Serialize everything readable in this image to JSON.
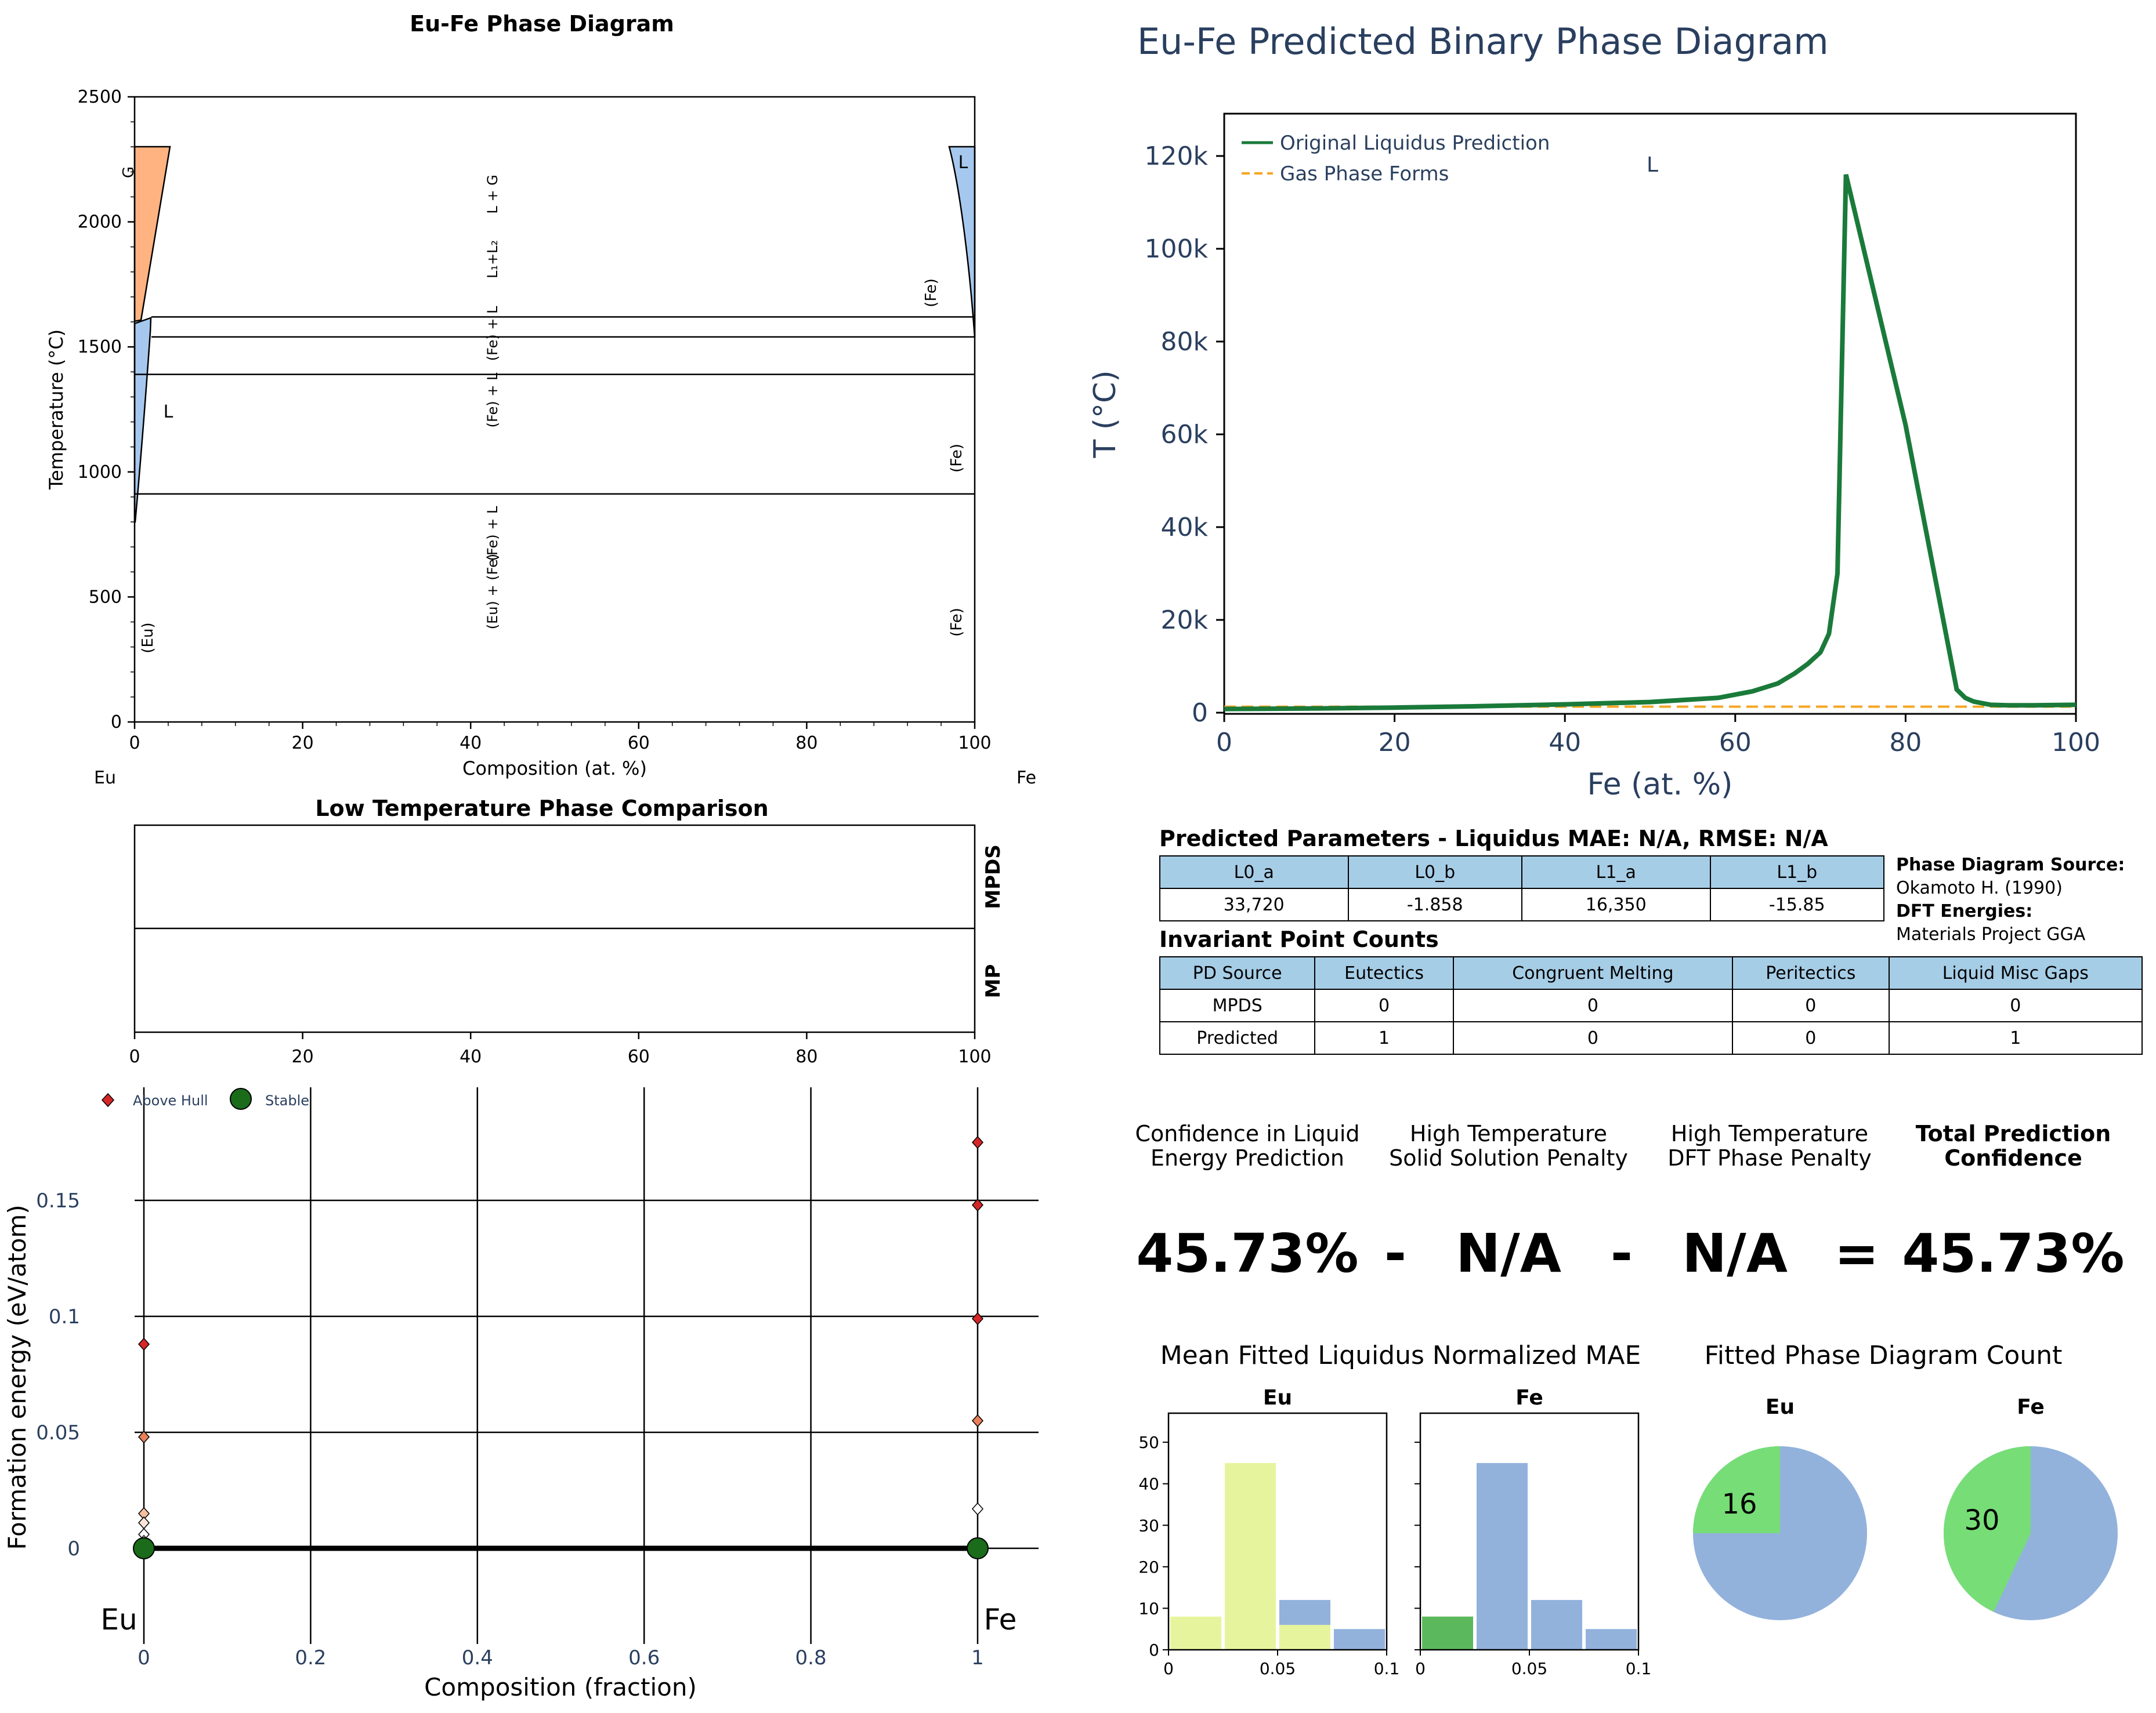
{
  "phase_diagram": {
    "title": "Eu-Fe Phase Diagram",
    "xlabel": "Composition (at. %)",
    "ylabel": "Temperature (°C)",
    "left_element": "Eu",
    "right_element": "Fe",
    "x_ticks": [
      "0",
      "20",
      "40",
      "60",
      "80",
      "100"
    ],
    "y_ticks": [
      "0",
      "500",
      "1000",
      "1500",
      "2000",
      "2500"
    ],
    "region_labels": [
      "G",
      "L",
      "L",
      "(Fe)",
      "(Fe)",
      "(Fe)",
      "(Eu)",
      "L + G",
      "L₁+L₂",
      "(Fe) + L",
      "(Fe) + L",
      "(Fe) + L",
      "(Eu) + (Fe)"
    ]
  },
  "low_temp": {
    "title": "Low Temperature Phase Comparison",
    "row_labels": [
      "MPDS",
      "MP"
    ],
    "x_ticks": [
      "0",
      "20",
      "40",
      "60",
      "80",
      "100"
    ]
  },
  "prediction": {
    "title": "Eu-Fe Predicted Binary Phase Diagram",
    "xlabel": "Fe (at. %)",
    "ylabel": "T (°C)",
    "x_ticks": [
      "0",
      "20",
      "40",
      "60",
      "80",
      "100"
    ],
    "y_ticks": [
      "0",
      "20k",
      "40k",
      "60k",
      "80k",
      "100k",
      "120k"
    ],
    "legend": [
      "Original Liquidus Prediction",
      "Gas Phase Forms"
    ],
    "region_label": "L"
  },
  "params": {
    "title": "Predicted Parameters - Liquidus MAE: N/A, RMSE: N/A",
    "headers": [
      "L0_a",
      "L0_b",
      "L1_a",
      "L1_b"
    ],
    "values": [
      "33,720",
      "-1.858",
      "16,350",
      "-15.85"
    ]
  },
  "source": {
    "pd_label": "Phase Diagram Source:",
    "pd_value": "Okamoto H. (1990)",
    "dft_label": "DFT Energies:",
    "dft_value": "Materials Project GGA"
  },
  "invariants": {
    "title": "Invariant Point Counts",
    "headers": [
      "PD Source",
      "Eutectics",
      "Congruent Melting",
      "Peritectics",
      "Liquid Misc Gaps"
    ],
    "rows": [
      [
        "MPDS",
        "0",
        "0",
        "0",
        "0"
      ],
      [
        "Predicted",
        "1",
        "0",
        "0",
        "1"
      ]
    ]
  },
  "confidence": {
    "labels": [
      "Confidence in Liquid\nEnergy Prediction",
      "High Temperature\nSolid Solution Penalty",
      "High Temperature\nDFT Phase Penalty",
      "Total Prediction\nConfidence"
    ],
    "values": [
      "45.73%",
      "N/A",
      "N/A",
      "45.73%"
    ],
    "operators": [
      "-",
      "-",
      "="
    ]
  },
  "hull": {
    "legend": [
      "Above Hull",
      "Stable"
    ],
    "xlabel": "Composition (fraction)",
    "ylabel": "Formation energy (eV/atom)",
    "x_ticks": [
      "0",
      "0.2",
      "0.4",
      "0.6",
      "0.8",
      "1"
    ],
    "y_ticks": [
      "0",
      "0.05",
      "0.1",
      "0.15"
    ],
    "left_element": "Eu",
    "right_element": "Fe"
  },
  "mae": {
    "title": "Mean Fitted Liquidus Normalized MAE",
    "panels": [
      "Eu",
      "Fe"
    ],
    "x_ticks": [
      "0",
      "0.05",
      "0.1"
    ],
    "y_ticks": [
      "0",
      "10",
      "20",
      "30",
      "40",
      "50"
    ]
  },
  "pies": {
    "title": "Fitted Phase Diagram Count",
    "panels": [
      "Eu",
      "Fe"
    ],
    "labels": [
      "16",
      "30"
    ]
  },
  "colors": {
    "liquidus": "#1a7a3a",
    "gas": "#f5a623",
    "table_header": "#a6cde6",
    "hull_above": "#d62728",
    "hull_stable": "#1a6b1a",
    "blue": "#92b2dc",
    "yellow_green": "#e6f59d",
    "green": "#77dd77",
    "dark_green": "#5cb85c",
    "axis_text": "#2a3f5f"
  },
  "chart_data": [
    {
      "type": "area",
      "title": "Eu-Fe Phase Diagram",
      "xlabel": "Composition (at. %)",
      "ylabel": "Temperature (°C)",
      "xlim": [
        0,
        100
      ],
      "ylim": [
        0,
        2500
      ],
      "invariant_lines": [
        {
          "x": [
            2,
            100
          ],
          "y": 1620
        },
        {
          "x": [
            2,
            100
          ],
          "y": 1540
        },
        {
          "x": [
            0,
            100
          ],
          "y": 1390
        },
        {
          "x": [
            0,
            100
          ],
          "y": 912
        }
      ]
    },
    {
      "type": "line",
      "title": "Eu-Fe Predicted Binary Phase Diagram",
      "xlabel": "Fe (at. %)",
      "ylabel": "T (°C)",
      "xlim": [
        0,
        100
      ],
      "ylim": [
        0,
        125000
      ],
      "series": [
        {
          "name": "Original Liquidus Prediction",
          "x": [
            0,
            10,
            20,
            30,
            40,
            50,
            58,
            62,
            65,
            67,
            68.5,
            70,
            71,
            72,
            73,
            80,
            86,
            87,
            88,
            90,
            92,
            95,
            100
          ],
          "y": [
            800,
            900,
            1100,
            1400,
            1800,
            2300,
            3200,
            4600,
            6300,
            8500,
            10500,
            13000,
            17000,
            30000,
            116000,
            62000,
            5000,
            3200,
            2400,
            1700,
            1600,
            1600,
            1700
          ]
        },
        {
          "name": "Gas Phase Forms",
          "x": [
            0,
            100
          ],
          "y": [
            1300,
            1300
          ]
        }
      ]
    },
    {
      "type": "scatter",
      "xlabel": "Composition (fraction)",
      "ylabel": "Formation energy (eV/atom)",
      "xlim": [
        0,
        1
      ],
      "ylim": [
        -0.028,
        0.185
      ],
      "series": [
        {
          "name": "Above Hull",
          "x": [
            0,
            0,
            0,
            0,
            0,
            0,
            1,
            1,
            1,
            1,
            1
          ],
          "y": [
            0.088,
            0.048,
            0.015,
            0.011,
            0.006,
            0.003,
            0.175,
            0.148,
            0.099,
            0.055,
            0.017
          ]
        },
        {
          "name": "Stable",
          "x": [
            0,
            1
          ],
          "y": [
            0,
            0
          ]
        }
      ]
    },
    {
      "type": "bar",
      "title": "Mean Fitted Liquidus Normalized MAE",
      "panels": [
        {
          "name": "Eu",
          "bins": [
            0,
            0.025,
            0.05,
            0.075,
            0.1
          ],
          "stacks": [
            {
              "color": "#e6f59d",
              "values": [
                8,
                45,
                6,
                0
              ]
            },
            {
              "color": "#92b2dc",
              "values": [
                0,
                0,
                6,
                5
              ]
            }
          ]
        },
        {
          "name": "Fe",
          "bins": [
            0,
            0.025,
            0.05,
            0.075,
            0.1
          ],
          "stacks": [
            {
              "color": "#5cb85c",
              "values": [
                8,
                0,
                0,
                0
              ]
            },
            {
              "color": "#92b2dc",
              "values": [
                0,
                45,
                12,
                5
              ]
            }
          ]
        }
      ],
      "xlim": [
        0,
        0.1
      ],
      "ylim": [
        0,
        57
      ]
    },
    {
      "type": "pie",
      "title": "Fitted Phase Diagram Count",
      "panels": [
        {
          "name": "Eu",
          "labeled_value": 16,
          "green_fraction": 0.25
        },
        {
          "name": "Fe",
          "labeled_value": 30,
          "green_fraction": 0.43
        }
      ]
    }
  ]
}
